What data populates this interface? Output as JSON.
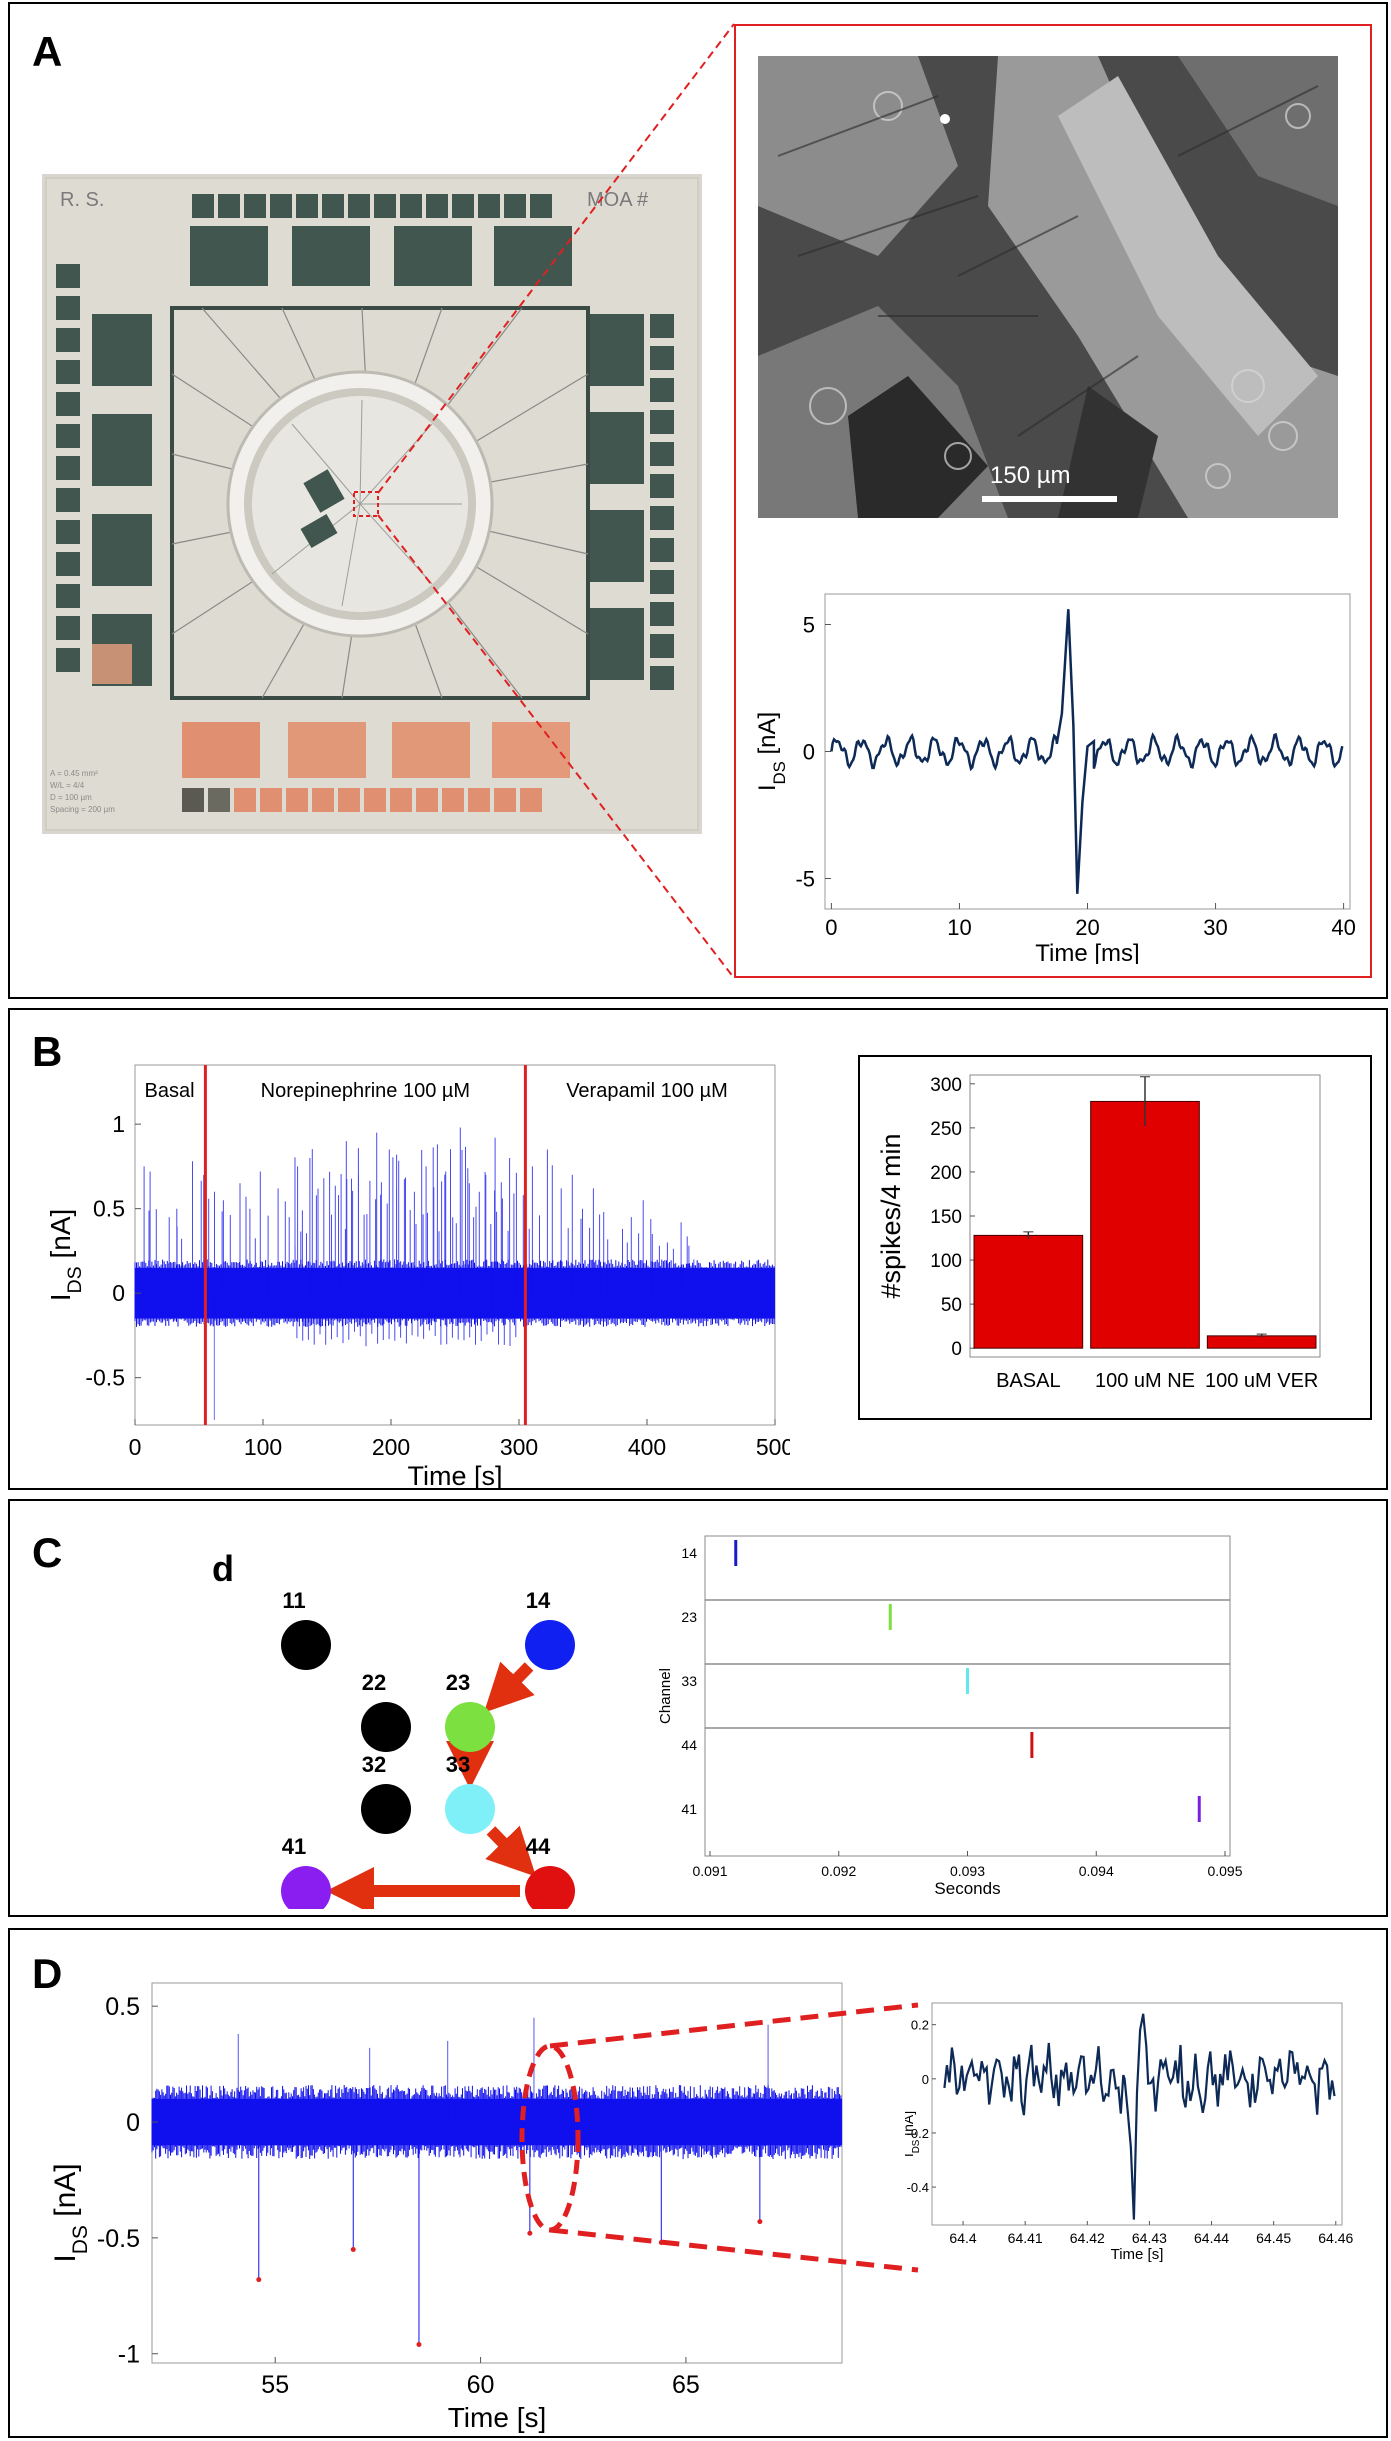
{
  "panels": {
    "a": "A",
    "b": "B",
    "c": "C",
    "d": "D"
  },
  "photo": {
    "corner_left": "R. S.",
    "corner_right": "MOA #",
    "legend_lines": [
      "A = 0.45 mm²",
      "W/L = 4/4",
      "D = 100 µm",
      "Spacing = 200 µm"
    ]
  },
  "micrograph": {
    "scalebar_label": "150 µm"
  },
  "chart_data": [
    {
      "id": "A-spike",
      "type": "line",
      "title": "",
      "xlabel": "Time [ms]",
      "ylabel_main": "I",
      "ylabel_sub": "DS",
      "ylabel_unit": " [nA]",
      "xlim": [
        -0.5,
        40.5
      ],
      "ylim": [
        -6.2,
        6.2
      ],
      "xticks": [
        0,
        10,
        20,
        30,
        40
      ],
      "yticks": [
        5,
        0,
        -5
      ],
      "series": [
        {
          "name": "IDS",
          "color": "#0d2a57",
          "baseline_amplitude": 0.45,
          "baseline_period_ms": 1.9,
          "x": [
            17.6,
            18.0,
            18.5,
            18.9,
            19.2,
            19.6,
            20.0,
            20.5
          ],
          "y": [
            0.3,
            1.5,
            5.6,
            1.0,
            -5.6,
            -2.0,
            0.2,
            0.4
          ]
        }
      ]
    },
    {
      "id": "B-trace",
      "type": "line",
      "xlabel": "Time [s]",
      "ylabel_main": "I",
      "ylabel_sub": "DS",
      "ylabel_unit": " [nA]",
      "xlim": [
        0,
        500
      ],
      "ylim": [
        -0.78,
        1.35
      ],
      "xticks": [
        0,
        100,
        200,
        300,
        400,
        500
      ],
      "yticks": [
        1,
        0.5,
        0,
        -0.5
      ],
      "noise_band": [
        -0.15,
        0.15
      ],
      "markers_x": [
        55,
        305
      ],
      "marker_color": "#e02020",
      "trace_color": "#1010ee",
      "annotations": [
        {
          "text": "Basal",
          "x": 27
        },
        {
          "text": "Norepinephrine 100 µM",
          "x": 180
        },
        {
          "text": "Verapamil 100 µM",
          "x": 400
        }
      ],
      "spike_heights": [
        0.75,
        0.72,
        0.45,
        0.5,
        0.78,
        0.7,
        0.6,
        0.55,
        0.65,
        0.5,
        0.72,
        0.62,
        0.45,
        0.75,
        0.8,
        0.68,
        0.58,
        0.9,
        0.7,
        0.95,
        0.85,
        0.82,
        0.6,
        0.75,
        0.88,
        0.72,
        0.98,
        0.65,
        0.7,
        0.92,
        0.8,
        0.58,
        0.75,
        0.85,
        0.62,
        0.7,
        0.5,
        0.62,
        0.48,
        0.38,
        0.45,
        0.55,
        0.35,
        0.3,
        0.42,
        0.28
      ]
    },
    {
      "id": "B-bars",
      "type": "bar",
      "xlabel": "",
      "ylabel": "#spikes/4 min",
      "ylim": [
        -10,
        310
      ],
      "yticks": [
        0,
        50,
        100,
        150,
        200,
        250,
        300
      ],
      "categories": [
        "BASAL",
        "100 uM NE",
        "100 uM VER"
      ],
      "values": [
        128,
        280,
        14
      ],
      "errors": [
        4,
        28,
        2
      ],
      "color": "#e00000"
    },
    {
      "id": "C-raster",
      "type": "scatter",
      "xlabel": "Seconds",
      "ylabel": "Channel",
      "xlim": [
        0.091,
        0.095
      ],
      "xticks": [
        "0.091",
        "0.092",
        "0.093",
        "0.094",
        "0.095"
      ],
      "channels": [
        "14",
        "23",
        "33",
        "44",
        "41"
      ],
      "events": [
        {
          "channel": "14",
          "t": 0.0912,
          "color": "#1a1acc"
        },
        {
          "channel": "23",
          "t": 0.0924,
          "color": "#7be040"
        },
        {
          "channel": "33",
          "t": 0.093,
          "color": "#62e8f0"
        },
        {
          "channel": "44",
          "t": 0.0935,
          "color": "#d01010"
        },
        {
          "channel": "41",
          "t": 0.0948,
          "color": "#7a20e0"
        }
      ]
    },
    {
      "id": "D-trace",
      "type": "line",
      "xlabel": "Time [s]",
      "ylabel_main": "I",
      "ylabel_sub": "DS",
      "ylabel_unit": " [nA]",
      "xlim": [
        52,
        68.8
      ],
      "ylim": [
        -1.04,
        0.6
      ],
      "xticks": [
        55,
        60,
        65
      ],
      "yticks": [
        0.5,
        0,
        -0.5,
        -1
      ],
      "noise_band": [
        -0.1,
        0.1
      ],
      "trace_color": "#1010ee",
      "spike_times": [
        54.6,
        56.9,
        58.5,
        61.2,
        64.4,
        66.8
      ],
      "spike_minima": [
        -0.68,
        -0.55,
        -0.96,
        -0.48,
        -0.52,
        -0.43
      ],
      "up_spike_times": [
        54.1,
        57.3,
        59.2,
        61.3,
        67.0
      ],
      "up_spike_heights": [
        0.38,
        0.32,
        0.35,
        0.45,
        0.42
      ],
      "marker_color": "#e02020"
    },
    {
      "id": "D-zoom",
      "type": "line",
      "xlabel": "Time [s]",
      "ylabel_main": "I",
      "ylabel_sub": "DS",
      "ylabel_unit": " [nA]",
      "xlim": [
        64.395,
        64.461
      ],
      "ylim": [
        -0.54,
        0.28
      ],
      "xticks": [
        "64.4",
        "64.41",
        "64.42",
        "64.43",
        "64.44",
        "64.45",
        "64.46"
      ],
      "yticks": [
        "0.2",
        "0",
        "-0.2",
        "-0.4"
      ],
      "series": [
        {
          "name": "IDS",
          "color": "#0d2a57",
          "x": [
            64.426,
            64.4265,
            64.427,
            64.4275,
            64.428,
            64.4285,
            64.429,
            64.4295
          ],
          "y": [
            0.0,
            -0.12,
            -0.25,
            -0.52,
            -0.05,
            0.18,
            0.24,
            0.12
          ]
        }
      ]
    }
  ],
  "network": {
    "label": "d",
    "nodes": [
      {
        "id": "11",
        "color": "#000000"
      },
      {
        "id": "14",
        "color": "#1020f0"
      },
      {
        "id": "22",
        "color": "#000000"
      },
      {
        "id": "23",
        "color": "#7be040"
      },
      {
        "id": "32",
        "color": "#000000"
      },
      {
        "id": "33",
        "color": "#80f0f8"
      },
      {
        "id": "41",
        "color": "#8a1ef0"
      },
      {
        "id": "44",
        "color": "#e01010"
      }
    ],
    "arrow_color": "#e03010"
  }
}
